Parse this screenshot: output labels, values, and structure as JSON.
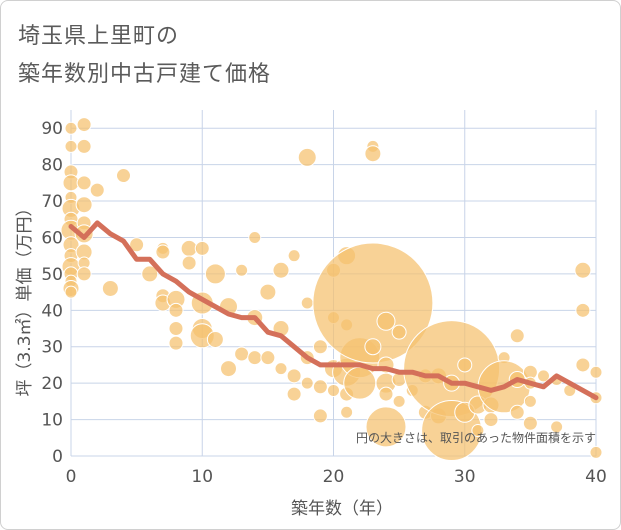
{
  "header": {
    "title_line1": "埼玉県上里町の",
    "title_line2": "築年数別中古戸建て価格"
  },
  "chart_data": {
    "type": "scatter",
    "title": "埼玉県上里町の 築年数別中古戸建て価格",
    "xlabel": "築年数（年）",
    "ylabel": "坪（3.3㎡）単価（万円）",
    "xlim": [
      0,
      40
    ],
    "ylim": [
      0,
      95
    ],
    "xticks": [
      0,
      10,
      20,
      30,
      40
    ],
    "yticks": [
      0,
      10,
      20,
      30,
      40,
      50,
      60,
      70,
      80,
      90
    ],
    "grid": true,
    "note": "円の大きさは、取引のあった物件面積を示す",
    "colors": {
      "bubble": "#f5c06e",
      "trend": "#d4705a",
      "grid": "#c8d4e8"
    },
    "trend": {
      "x": [
        0,
        1,
        2,
        3,
        4,
        5,
        6,
        7,
        8,
        9,
        10,
        11,
        12,
        13,
        14,
        15,
        16,
        17,
        18,
        19,
        20,
        21,
        22,
        23,
        24,
        25,
        26,
        27,
        28,
        29,
        30,
        31,
        32,
        33,
        34,
        35,
        36,
        37,
        38,
        39,
        40
      ],
      "y": [
        63,
        60,
        64,
        61,
        59,
        54,
        54,
        50,
        48,
        45,
        43,
        41,
        39,
        38,
        38,
        34,
        33,
        30,
        27,
        25,
        25,
        25,
        25,
        24,
        24,
        23,
        23,
        22,
        22,
        20,
        20,
        19,
        18,
        19,
        21,
        20,
        19,
        22,
        20,
        18,
        16
      ]
    },
    "bubbles": [
      {
        "x": 0,
        "y": 90,
        "s": 6
      },
      {
        "x": 0,
        "y": 85,
        "s": 6
      },
      {
        "x": 0,
        "y": 78,
        "s": 7
      },
      {
        "x": 0,
        "y": 75,
        "s": 8
      },
      {
        "x": 0,
        "y": 71,
        "s": 6
      },
      {
        "x": 0,
        "y": 68,
        "s": 9
      },
      {
        "x": 0,
        "y": 65,
        "s": 7
      },
      {
        "x": 0,
        "y": 62,
        "s": 10
      },
      {
        "x": 0,
        "y": 58,
        "s": 8
      },
      {
        "x": 0,
        "y": 55,
        "s": 7
      },
      {
        "x": 0,
        "y": 52,
        "s": 9
      },
      {
        "x": 0,
        "y": 50,
        "s": 7
      },
      {
        "x": 0,
        "y": 48,
        "s": 6
      },
      {
        "x": 0,
        "y": 46,
        "s": 8
      },
      {
        "x": 0,
        "y": 45,
        "s": 6
      },
      {
        "x": 1,
        "y": 91,
        "s": 7
      },
      {
        "x": 1,
        "y": 85,
        "s": 7
      },
      {
        "x": 1,
        "y": 75,
        "s": 7
      },
      {
        "x": 1,
        "y": 69,
        "s": 8
      },
      {
        "x": 1,
        "y": 64,
        "s": 7
      },
      {
        "x": 1,
        "y": 61,
        "s": 9
      },
      {
        "x": 1,
        "y": 56,
        "s": 8
      },
      {
        "x": 1,
        "y": 53,
        "s": 6
      },
      {
        "x": 1,
        "y": 50,
        "s": 7
      },
      {
        "x": 2,
        "y": 73,
        "s": 7
      },
      {
        "x": 3,
        "y": 46,
        "s": 8
      },
      {
        "x": 4,
        "y": 77,
        "s": 7
      },
      {
        "x": 5,
        "y": 58,
        "s": 7
      },
      {
        "x": 6,
        "y": 50,
        "s": 8
      },
      {
        "x": 7,
        "y": 57,
        "s": 6
      },
      {
        "x": 7,
        "y": 56,
        "s": 7
      },
      {
        "x": 7,
        "y": 44,
        "s": 7
      },
      {
        "x": 7,
        "y": 42,
        "s": 8
      },
      {
        "x": 8,
        "y": 43,
        "s": 9
      },
      {
        "x": 8,
        "y": 40,
        "s": 7
      },
      {
        "x": 8,
        "y": 35,
        "s": 7
      },
      {
        "x": 8,
        "y": 31,
        "s": 7
      },
      {
        "x": 9,
        "y": 57,
        "s": 8
      },
      {
        "x": 9,
        "y": 53,
        "s": 7
      },
      {
        "x": 10,
        "y": 57,
        "s": 7
      },
      {
        "x": 10,
        "y": 42,
        "s": 11
      },
      {
        "x": 10,
        "y": 35,
        "s": 10
      },
      {
        "x": 10,
        "y": 33,
        "s": 12
      },
      {
        "x": 11,
        "y": 50,
        "s": 10
      },
      {
        "x": 11,
        "y": 32,
        "s": 8
      },
      {
        "x": 12,
        "y": 41,
        "s": 9
      },
      {
        "x": 12,
        "y": 24,
        "s": 8
      },
      {
        "x": 13,
        "y": 51,
        "s": 6
      },
      {
        "x": 13,
        "y": 28,
        "s": 7
      },
      {
        "x": 14,
        "y": 60,
        "s": 6
      },
      {
        "x": 14,
        "y": 38,
        "s": 8
      },
      {
        "x": 14,
        "y": 27,
        "s": 7
      },
      {
        "x": 15,
        "y": 45,
        "s": 8
      },
      {
        "x": 15,
        "y": 27,
        "s": 7
      },
      {
        "x": 16,
        "y": 51,
        "s": 8
      },
      {
        "x": 16,
        "y": 35,
        "s": 8
      },
      {
        "x": 16,
        "y": 24,
        "s": 6
      },
      {
        "x": 17,
        "y": 55,
        "s": 6
      },
      {
        "x": 17,
        "y": 22,
        "s": 7
      },
      {
        "x": 17,
        "y": 17,
        "s": 7
      },
      {
        "x": 18,
        "y": 82,
        "s": 9
      },
      {
        "x": 18,
        "y": 42,
        "s": 6
      },
      {
        "x": 18,
        "y": 27,
        "s": 7
      },
      {
        "x": 18,
        "y": 20,
        "s": 6
      },
      {
        "x": 19,
        "y": 30,
        "s": 7
      },
      {
        "x": 19,
        "y": 19,
        "s": 7
      },
      {
        "x": 19,
        "y": 11,
        "s": 7
      },
      {
        "x": 20,
        "y": 51,
        "s": 7
      },
      {
        "x": 20,
        "y": 38,
        "s": 6
      },
      {
        "x": 20,
        "y": 24,
        "s": 9
      },
      {
        "x": 20,
        "y": 18,
        "s": 6
      },
      {
        "x": 21,
        "y": 55,
        "s": 9
      },
      {
        "x": 21,
        "y": 36,
        "s": 6
      },
      {
        "x": 21,
        "y": 23,
        "s": 14
      },
      {
        "x": 21,
        "y": 17,
        "s": 7
      },
      {
        "x": 21,
        "y": 12,
        "s": 6
      },
      {
        "x": 22,
        "y": 27,
        "s": 20
      },
      {
        "x": 22,
        "y": 20,
        "s": 16
      },
      {
        "x": 23,
        "y": 85,
        "s": 6
      },
      {
        "x": 23,
        "y": 83,
        "s": 8
      },
      {
        "x": 23,
        "y": 42,
        "s": 60
      },
      {
        "x": 23,
        "y": 30,
        "s": 8
      },
      {
        "x": 24,
        "y": 37,
        "s": 9
      },
      {
        "x": 24,
        "y": 25,
        "s": 8
      },
      {
        "x": 24,
        "y": 20,
        "s": 10
      },
      {
        "x": 24,
        "y": 17,
        "s": 7
      },
      {
        "x": 24,
        "y": 8,
        "s": 20
      },
      {
        "x": 25,
        "y": 34,
        "s": 7
      },
      {
        "x": 25,
        "y": 21,
        "s": 7
      },
      {
        "x": 25,
        "y": 15,
        "s": 6
      },
      {
        "x": 26,
        "y": 18,
        "s": 6
      },
      {
        "x": 27,
        "y": 22,
        "s": 7
      },
      {
        "x": 27,
        "y": 12,
        "s": 7
      },
      {
        "x": 28,
        "y": 22,
        "s": 8
      },
      {
        "x": 28,
        "y": 11,
        "s": 8
      },
      {
        "x": 29,
        "y": 24,
        "s": 48
      },
      {
        "x": 29,
        "y": 20,
        "s": 8
      },
      {
        "x": 29,
        "y": 7,
        "s": 30
      },
      {
        "x": 30,
        "y": 25,
        "s": 7
      },
      {
        "x": 30,
        "y": 12,
        "s": 10
      },
      {
        "x": 31,
        "y": 14,
        "s": 9
      },
      {
        "x": 31,
        "y": 7,
        "s": 6
      },
      {
        "x": 32,
        "y": 14,
        "s": 8
      },
      {
        "x": 32,
        "y": 10,
        "s": 7
      },
      {
        "x": 33,
        "y": 27,
        "s": 6
      },
      {
        "x": 33,
        "y": 19,
        "s": 26
      },
      {
        "x": 34,
        "y": 33,
        "s": 7
      },
      {
        "x": 34,
        "y": 21,
        "s": 8
      },
      {
        "x": 34,
        "y": 12,
        "s": 7
      },
      {
        "x": 35,
        "y": 23,
        "s": 7
      },
      {
        "x": 35,
        "y": 20,
        "s": 6
      },
      {
        "x": 35,
        "y": 15,
        "s": 6
      },
      {
        "x": 35,
        "y": 9,
        "s": 7
      },
      {
        "x": 36,
        "y": 22,
        "s": 6
      },
      {
        "x": 37,
        "y": 21,
        "s": 6
      },
      {
        "x": 37,
        "y": 8,
        "s": 6
      },
      {
        "x": 38,
        "y": 18,
        "s": 6
      },
      {
        "x": 39,
        "y": 51,
        "s": 8
      },
      {
        "x": 39,
        "y": 40,
        "s": 7
      },
      {
        "x": 39,
        "y": 25,
        "s": 7
      },
      {
        "x": 40,
        "y": 23,
        "s": 6
      },
      {
        "x": 40,
        "y": 16,
        "s": 6
      },
      {
        "x": 40,
        "y": 1,
        "s": 6
      }
    ]
  }
}
